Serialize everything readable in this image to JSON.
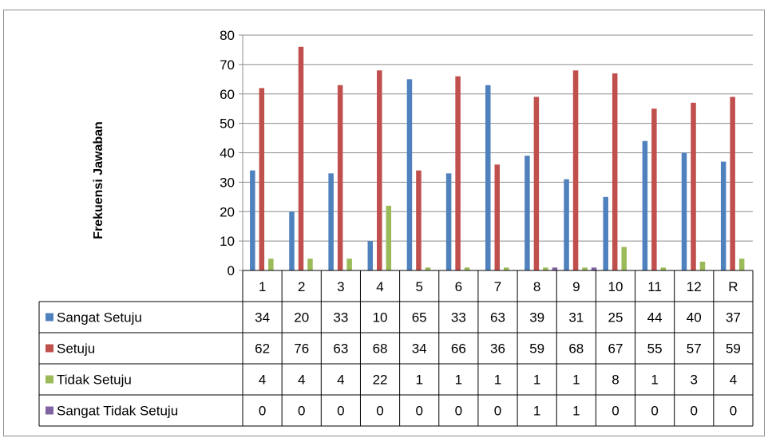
{
  "chart_data": {
    "type": "bar",
    "title": "",
    "xlabel": "",
    "ylabel": "Frekuensi Jawaban",
    "categories": [
      "1",
      "2",
      "3",
      "4",
      "5",
      "6",
      "7",
      "8",
      "9",
      "10",
      "11",
      "12",
      "R"
    ],
    "yticks": [
      0,
      10,
      20,
      30,
      40,
      50,
      60,
      70,
      80
    ],
    "ylim": [
      0,
      80
    ],
    "grid": true,
    "legend": "data-table-left",
    "series": [
      {
        "name": "Sangat Setuju",
        "color": "#4f81bd",
        "values": [
          34,
          20,
          33,
          10,
          65,
          33,
          63,
          39,
          31,
          25,
          44,
          40,
          37
        ]
      },
      {
        "name": "Setuju",
        "color": "#c0504d",
        "values": [
          62,
          76,
          63,
          68,
          34,
          66,
          36,
          59,
          68,
          67,
          55,
          57,
          59
        ]
      },
      {
        "name": "Tidak Setuju",
        "color": "#9bbb59",
        "values": [
          4,
          4,
          4,
          22,
          1,
          1,
          1,
          1,
          1,
          8,
          1,
          3,
          4
        ]
      },
      {
        "name": "Sangat Tidak Setuju",
        "color": "#8064a2",
        "values": [
          0,
          0,
          0,
          0,
          0,
          0,
          0,
          1,
          1,
          0,
          0,
          0,
          0
        ]
      }
    ]
  }
}
